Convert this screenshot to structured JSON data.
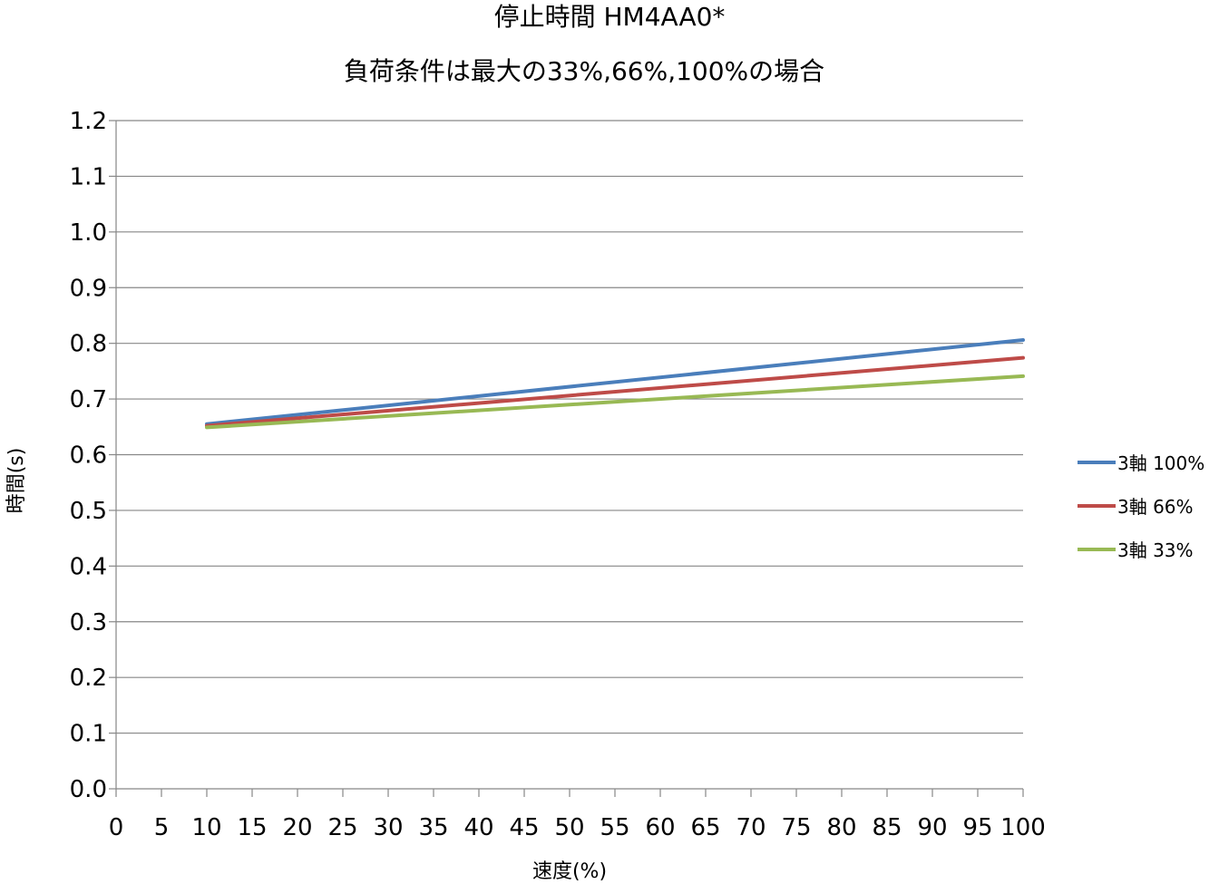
{
  "chart_data": {
    "type": "line",
    "title": "停止時間 HM4AA0*",
    "subtitle": "負荷条件は最大の33%,66%,100%の場合",
    "xlabel": "速度(%)",
    "ylabel": "時間(s)",
    "xlim": [
      0,
      100
    ],
    "ylim": [
      0.0,
      1.2
    ],
    "x_ticks": [
      "0",
      "5",
      "10",
      "15",
      "20",
      "25",
      "30",
      "35",
      "40",
      "45",
      "50",
      "55",
      "60",
      "65",
      "70",
      "75",
      "80",
      "85",
      "90",
      "95",
      "100"
    ],
    "y_ticks": [
      "0.0",
      "0.1",
      "0.2",
      "0.3",
      "0.4",
      "0.5",
      "0.6",
      "0.7",
      "0.8",
      "0.9",
      "1.0",
      "1.1",
      "1.2"
    ],
    "grid": true,
    "legend_position": "right",
    "series": [
      {
        "name": "3軸 100%",
        "color": "#4a7ebb",
        "x": [
          10,
          100
        ],
        "y": [
          0.655,
          0.806
        ]
      },
      {
        "name": "3軸 66%",
        "color": "#be4b48",
        "x": [
          10,
          100
        ],
        "y": [
          0.652,
          0.774
        ]
      },
      {
        "name": "3軸 33%",
        "color": "#98b954",
        "x": [
          10,
          100
        ],
        "y": [
          0.649,
          0.741
        ]
      }
    ]
  }
}
